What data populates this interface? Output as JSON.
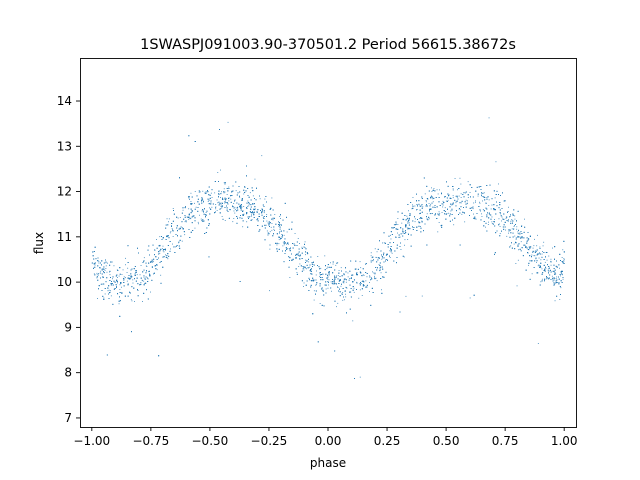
{
  "chart_data": {
    "type": "scatter",
    "title": "1SWASPJ091003.90-370501.2 Period 56615.38672s",
    "xlabel": "phase",
    "ylabel": "flux",
    "xlim": [
      -1.05,
      1.05
    ],
    "ylim": [
      6.8,
      14.95
    ],
    "xticks": [
      -1.0,
      -0.75,
      -0.5,
      -0.25,
      0.0,
      0.25,
      0.5,
      0.75,
      1.0
    ],
    "xtick_labels": [
      "−1.00",
      "−0.75",
      "−0.50",
      "−0.25",
      "0.00",
      "0.25",
      "0.50",
      "0.75",
      "1.00"
    ],
    "yticks": [
      7,
      8,
      9,
      10,
      11,
      12,
      13,
      14
    ],
    "ytick_labels": [
      "7",
      "8",
      "9",
      "10",
      "11",
      "12",
      "13",
      "14"
    ],
    "grid": false,
    "marker_color": "#1f77b4",
    "series": [
      {
        "points_x": [
          -1.0,
          -0.975,
          -0.95,
          -0.925,
          -0.9,
          -0.875,
          -0.85,
          -0.825,
          -0.8,
          -0.775,
          -0.75,
          -0.725,
          -0.7,
          -0.675,
          -0.65,
          -0.625,
          -0.6,
          -0.575,
          -0.55,
          -0.525,
          -0.5,
          -0.475,
          -0.45,
          -0.425,
          -0.4,
          -0.375,
          -0.35,
          -0.325,
          -0.3,
          -0.275,
          -0.25,
          -0.225,
          -0.2,
          -0.175,
          -0.15,
          -0.125,
          -0.1,
          -0.075,
          -0.05,
          -0.025,
          0.0,
          0.025,
          0.05,
          0.075,
          0.1,
          0.125,
          0.15,
          0.175,
          0.2,
          0.225,
          0.25,
          0.275,
          0.3,
          0.325,
          0.35,
          0.375,
          0.4,
          0.425,
          0.45,
          0.475,
          0.5,
          0.525,
          0.55,
          0.575,
          0.6,
          0.625,
          0.65,
          0.675,
          0.7,
          0.725,
          0.75,
          0.775,
          0.8,
          0.825,
          0.85,
          0.875,
          0.9,
          0.925,
          0.95,
          0.975,
          1.0
        ],
        "trend_y": [
          10.5,
          10.3,
          10.15,
          10.05,
          10.0,
          10.0,
          10.0,
          10.05,
          10.1,
          10.2,
          10.35,
          10.55,
          10.75,
          10.95,
          11.15,
          11.3,
          11.45,
          11.55,
          11.65,
          11.7,
          11.75,
          11.75,
          11.8,
          11.8,
          11.8,
          11.75,
          11.75,
          11.7,
          11.6,
          11.5,
          11.35,
          11.2,
          11.05,
          10.9,
          10.75,
          10.6,
          10.4,
          10.25,
          10.1,
          10.05,
          10.0,
          10.0,
          10.0,
          10.0,
          10.0,
          10.05,
          10.1,
          10.2,
          10.35,
          10.5,
          10.7,
          10.9,
          11.1,
          11.25,
          11.4,
          11.5,
          11.6,
          11.65,
          11.7,
          11.75,
          11.75,
          11.75,
          11.8,
          11.8,
          11.8,
          11.75,
          11.75,
          11.7,
          11.6,
          11.5,
          11.35,
          11.2,
          11.05,
          10.9,
          10.75,
          10.6,
          10.45,
          10.3,
          10.15,
          10.05,
          10.5
        ]
      }
    ]
  }
}
